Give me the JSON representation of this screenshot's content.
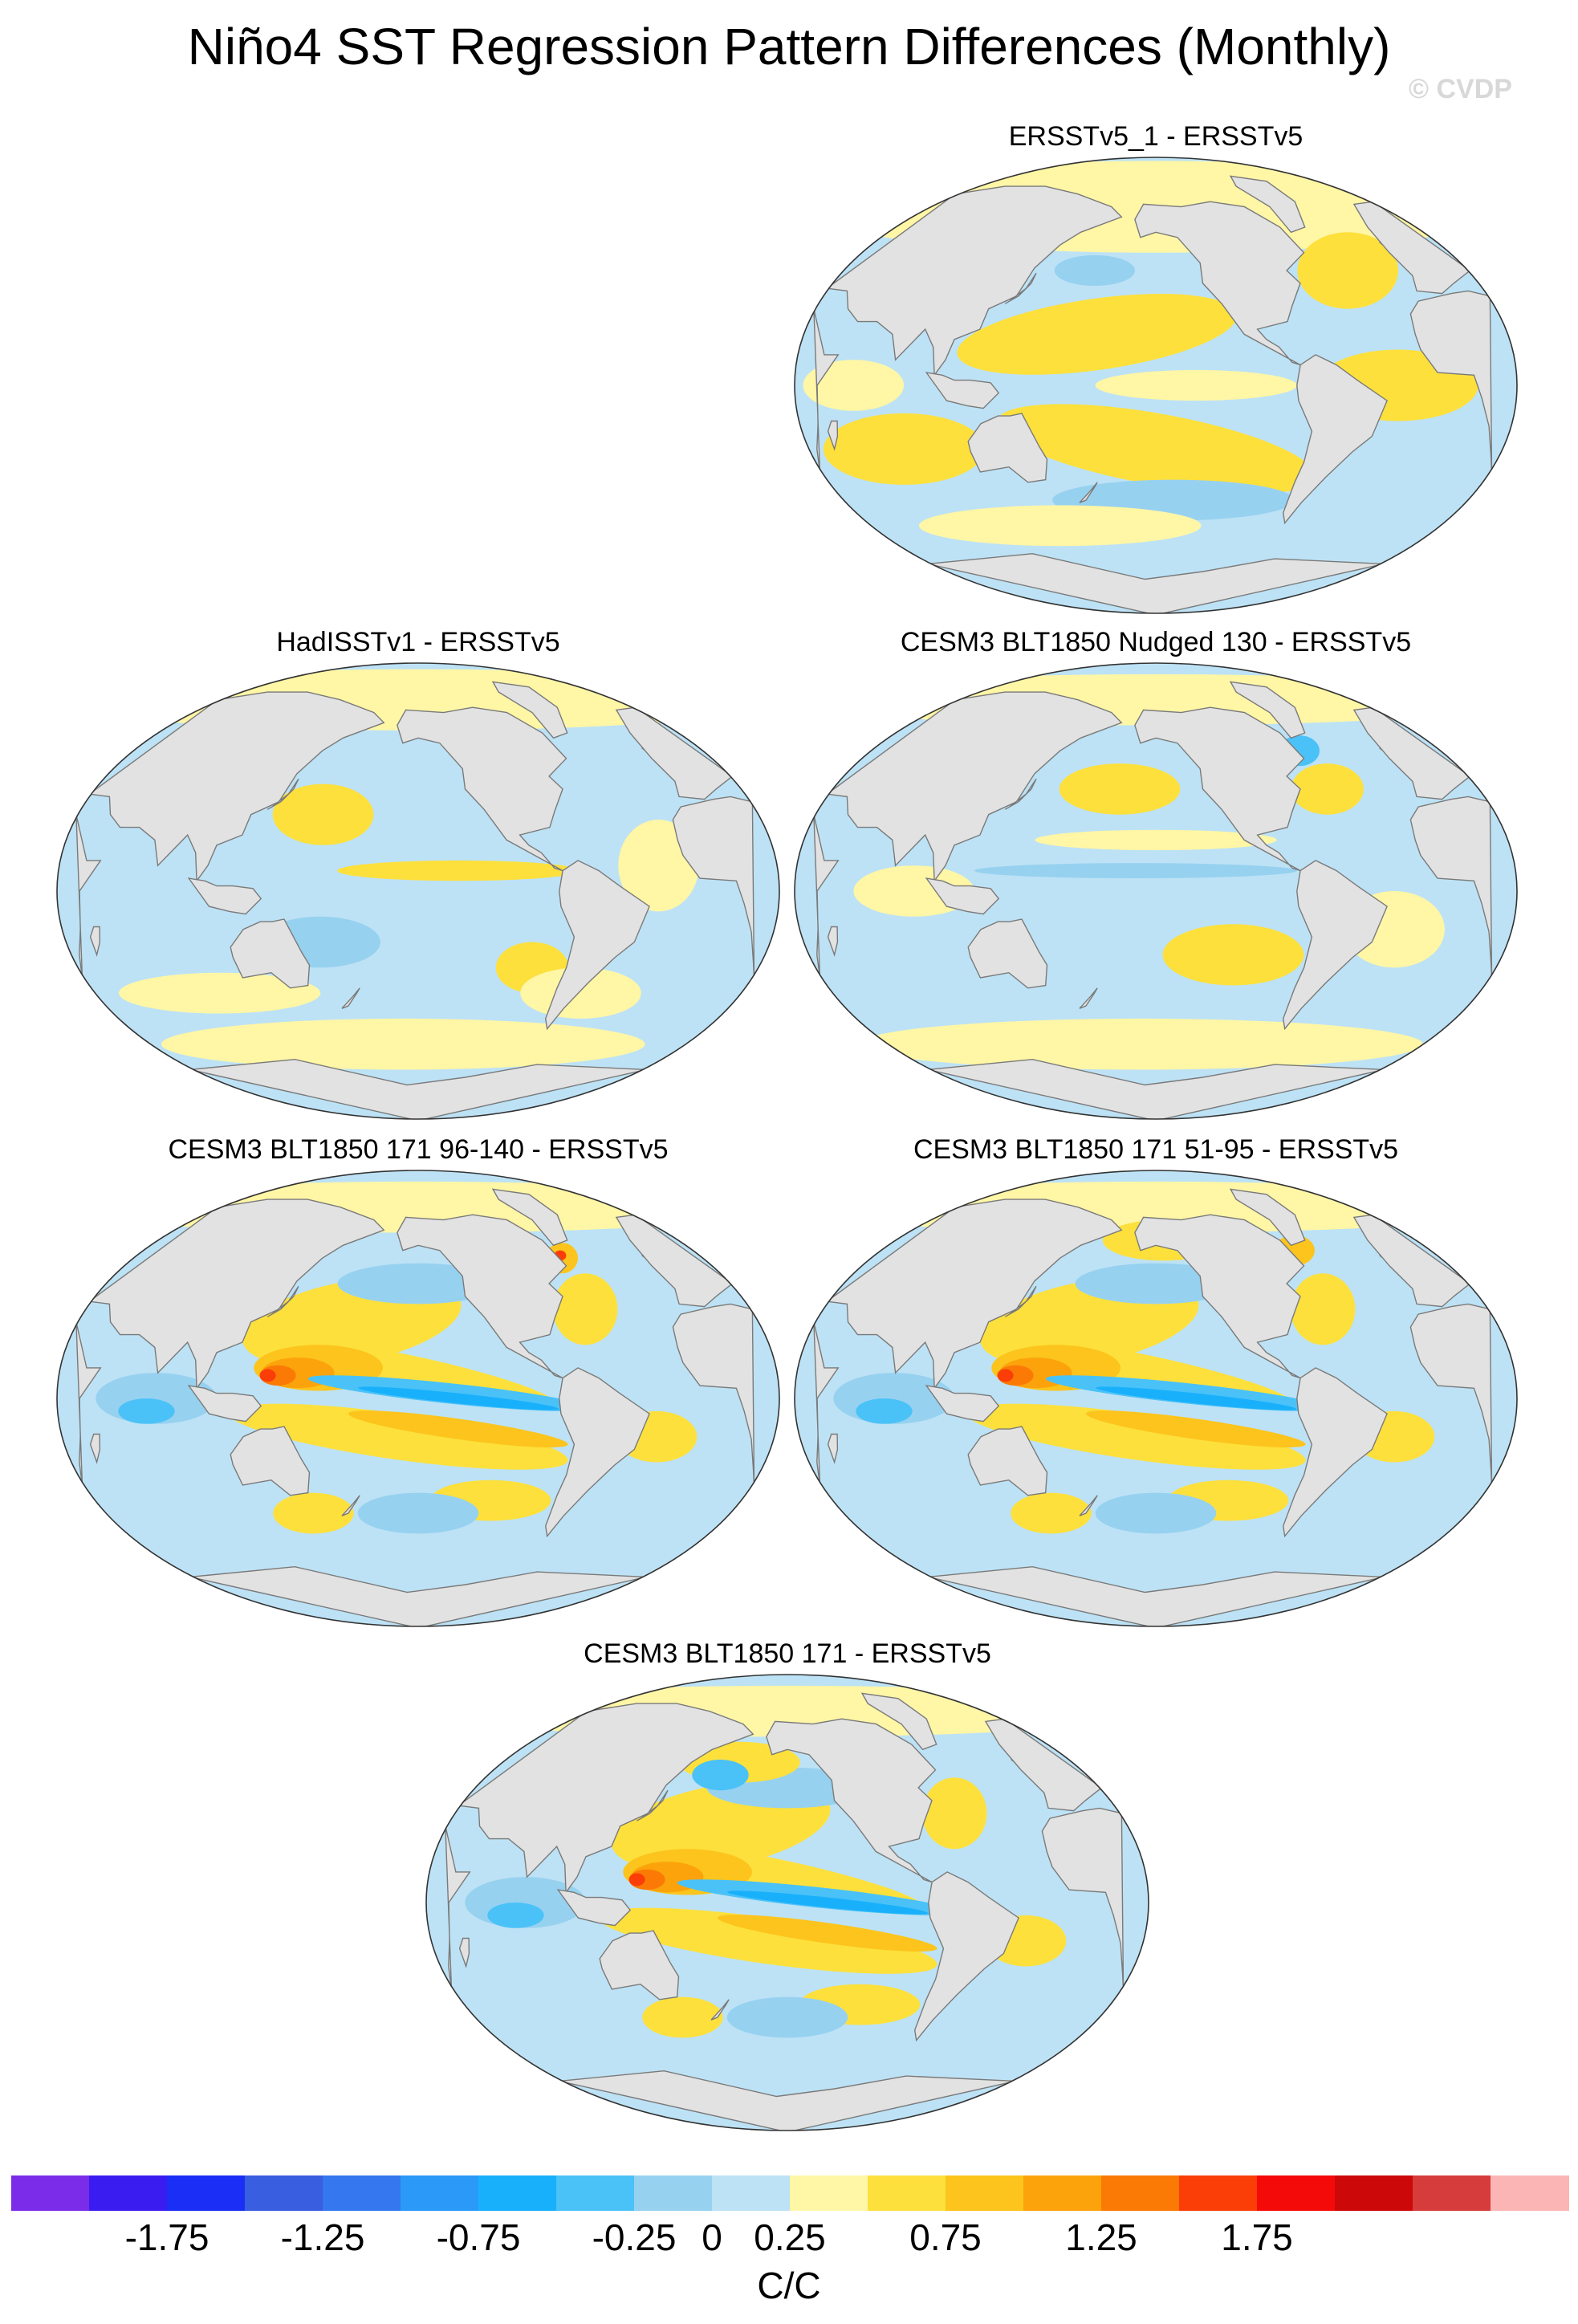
{
  "figure": {
    "title": "Niño4 SST Regression Pattern Differences (Monthly)",
    "credit": "© CVDP"
  },
  "panels": [
    {
      "id": "p1",
      "title": "ERSSTv5_1 - ERSSTv5",
      "intensity": "weak-positive"
    },
    {
      "id": "p2",
      "title": "HadISSTv1 - ERSSTv5",
      "intensity": "weak-mixed"
    },
    {
      "id": "p3",
      "title": "CESM3 BLT1850 Nudged 130 - ERSSTv5",
      "intensity": "weak-mixed"
    },
    {
      "id": "p4",
      "title": "CESM3 BLT1850 171 96-140 - ERSSTv5",
      "intensity": "strong"
    },
    {
      "id": "p5",
      "title": "CESM3 BLT1850 171 51-95 - ERSSTv5",
      "intensity": "strong"
    },
    {
      "id": "p6",
      "title": "CESM3 BLT1850 171 - ERSSTv5",
      "intensity": "strong"
    }
  ],
  "colorbar": {
    "units": "C/C",
    "colors": [
      "#7b2ce8",
      "#3a1cf0",
      "#1a2ef5",
      "#3a5ee0",
      "#3477ee",
      "#2b99f7",
      "#19b0fb",
      "#4ac2f7",
      "#97d1f0",
      "#bde2f5",
      "#fff6a6",
      "#fde03c",
      "#fcc41c",
      "#fca30c",
      "#fb7a06",
      "#fb3d08",
      "#f40a08",
      "#cc0808",
      "#d63c3c",
      "#fbb5b5"
    ],
    "tick_labels": [
      "-1.75",
      "-1.25",
      "-0.75",
      "-0.25",
      "0",
      "0.25",
      "0.75",
      "1.25",
      "1.75"
    ],
    "tick_values": [
      -1.75,
      -1.25,
      -0.75,
      -0.25,
      0,
      0.25,
      0.75,
      1.25,
      1.75
    ]
  }
}
